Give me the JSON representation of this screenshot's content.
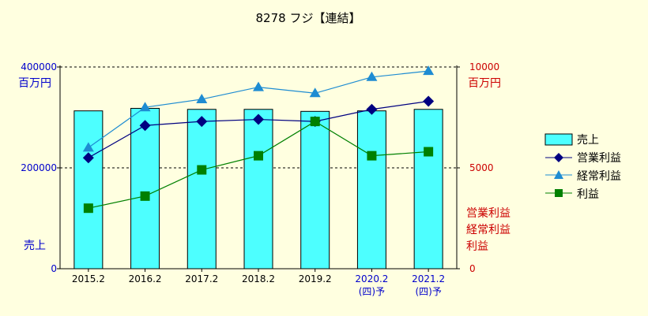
{
  "chart_data": {
    "type": "bar+line",
    "title": "8278 フジ【連結】",
    "categories": [
      {
        "label": "2015.2",
        "note": ""
      },
      {
        "label": "2016.2",
        "note": ""
      },
      {
        "label": "2017.2",
        "note": ""
      },
      {
        "label": "2018.2",
        "note": ""
      },
      {
        "label": "2019.2",
        "note": ""
      },
      {
        "label": "2020.2",
        "note": "(四)予"
      },
      {
        "label": "2021.2",
        "note": "(四)予"
      }
    ],
    "left_axis": {
      "unit": "百万円",
      "label": "売上",
      "ticks": [
        "400000",
        "200000",
        "0"
      ],
      "ylim": [
        0,
        400000
      ]
    },
    "right_axis": {
      "unit": "百万円",
      "labels": [
        "営業利益",
        "経常利益",
        "利益"
      ],
      "ticks": [
        "10000",
        "5000",
        "0"
      ],
      "ylim": [
        0,
        10000
      ]
    },
    "bars": {
      "name": "売上",
      "values": [
        313000,
        318000,
        316000,
        316000,
        312000,
        313000,
        316000
      ],
      "color": "#4dffff"
    },
    "series": [
      {
        "name": "営業利益",
        "marker": "diamond",
        "color": "#000080",
        "values": [
          5500,
          7100,
          7300,
          7400,
          7300,
          7900,
          8300
        ]
      },
      {
        "name": "経常利益",
        "marker": "triangle",
        "color": "#1e8cd2",
        "values": [
          6000,
          8000,
          8400,
          9000,
          8700,
          9500,
          9800
        ]
      },
      {
        "name": "利益",
        "marker": "square",
        "color": "#008000",
        "values": [
          3000,
          3600,
          4900,
          5600,
          7300,
          5600,
          5800
        ]
      }
    ],
    "legend_placement": "right",
    "grid": "dashed at 200000 and 400000"
  }
}
